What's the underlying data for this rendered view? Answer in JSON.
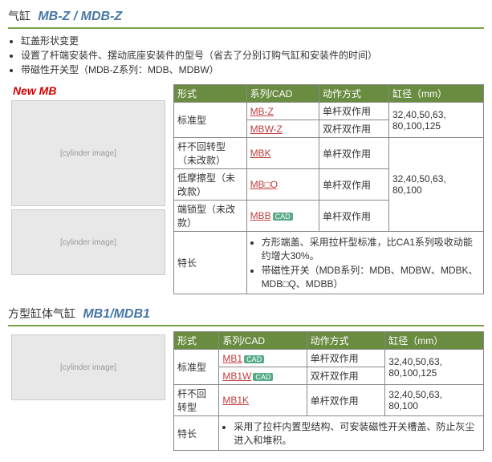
{
  "section1": {
    "titleLabel": "气缸",
    "titleModel": "MB-Z / MDB-Z",
    "features": [
      "缸盖形状变更",
      "设置了杆端安装件、摆动底座安装件的型号（省去了分别订购气缸和安装件的时间）",
      "带磁性开关型（MDB-Z系列：MDB、MDBW）"
    ],
    "newBadge": "New MB",
    "headers": [
      "形式",
      "系列/CAD",
      "动作方式",
      "缸径（mm）"
    ],
    "rows": {
      "std": {
        "type": "标准型",
        "link1": "MB-Z",
        "act1": "单杆双作用",
        "link2": "MBW-Z",
        "act2": "双杆双作用",
        "bore": "32,40,50,63,\n80,100,125"
      },
      "nonrot": {
        "type": "杆不回转型（未改款）",
        "link": "MBK",
        "act": "单杆双作用",
        "boreGroup": "32,40,50,63,\n80,100"
      },
      "lowfric": {
        "type": "低摩擦型（未改款）",
        "link": "MB□Q",
        "act": "单杆双作用"
      },
      "endlock": {
        "type": "端锁型（未改款）",
        "link": "MBB",
        "cad": "CAD",
        "act": "单杆双作用"
      },
      "featLabel": "特长",
      "featItems": [
        "方形端盖、采用拉杆型标准，比CA1系列吸收动能约增大30%。",
        "带磁性开关（MDB系列：MDB、MDBW、MDBK、MDB□Q、MDBB）"
      ]
    }
  },
  "section2": {
    "titleLabel": "方型缸体气缸",
    "titleModel": "MB1/MDB1",
    "headers": [
      "形式",
      "系列/CAD",
      "动作方式",
      "缸径（mm）"
    ],
    "rows": {
      "std": {
        "type": "标准型",
        "link1": "MB1",
        "cad1": "CAD",
        "act1": "单杆双作用",
        "link2": "MB1W",
        "cad2": "CAD",
        "act2": "双杆双作用",
        "bore": "32,40,50,63,\n80,100,125"
      },
      "nonrot": {
        "type": "杆不回转型",
        "link": "MB1K",
        "act": "单杆双作用",
        "bore": "32,40,50,63,\n80,100"
      },
      "featLabel": "特长",
      "featItems": [
        "采用了拉杆内置型结构、可安装磁性开关槽盖、防止灰尘进入和堆积。"
      ]
    }
  }
}
